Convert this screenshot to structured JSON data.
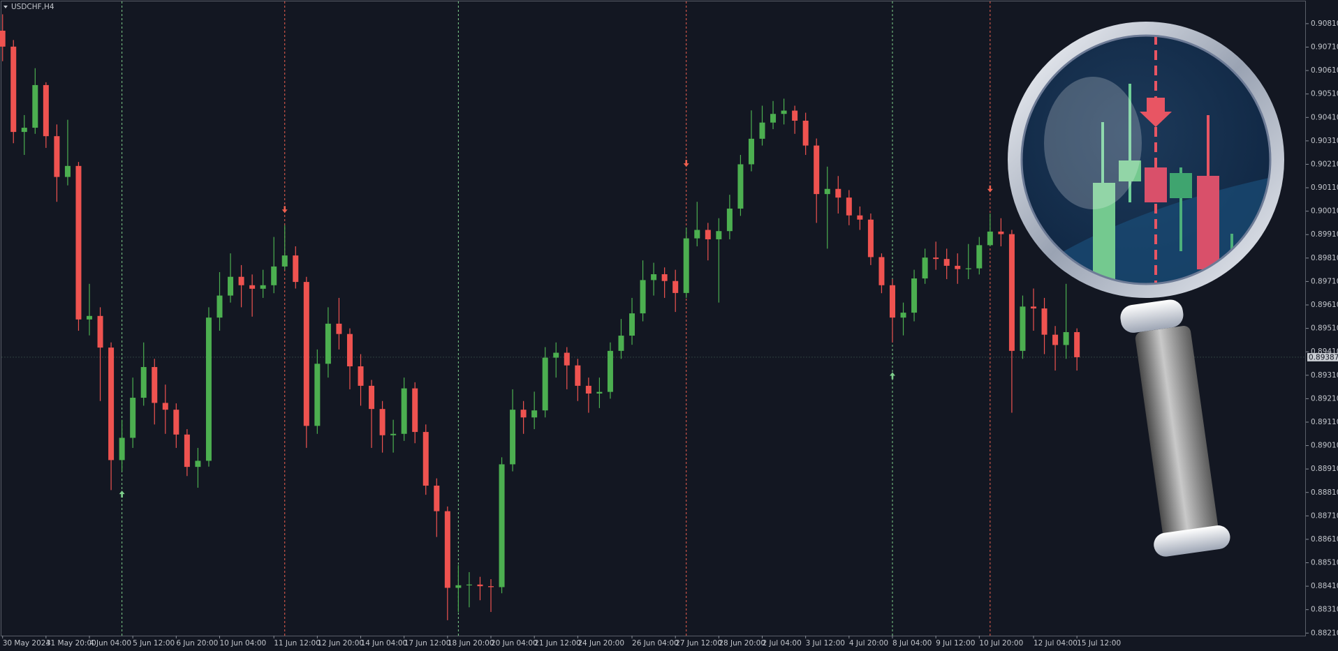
{
  "chart_data": {
    "type": "candlestick",
    "title": "USDCHF,H4",
    "bull_color": "#4caf50",
    "bear_color": "#ef5350",
    "ylim": [
      0.88199,
      0.90905
    ],
    "yticks": [
      {
        "value": 0.9081,
        "label": "0.90810"
      },
      {
        "value": 0.9071,
        "label": "0.90710"
      },
      {
        "value": 0.9061,
        "label": "0.90610"
      },
      {
        "value": 0.9051,
        "label": "0.90510"
      },
      {
        "value": 0.9041,
        "label": "0.90410"
      },
      {
        "value": 0.9031,
        "label": "0.90310"
      },
      {
        "value": 0.9021,
        "label": "0.90210"
      },
      {
        "value": 0.9011,
        "label": "0.90110"
      },
      {
        "value": 0.9001,
        "label": "0.90010"
      },
      {
        "value": 0.8991,
        "label": "0.89910"
      },
      {
        "value": 0.8981,
        "label": "0.89810"
      },
      {
        "value": 0.8971,
        "label": "0.89710"
      },
      {
        "value": 0.8961,
        "label": "0.89610"
      },
      {
        "value": 0.8951,
        "label": "0.89510"
      },
      {
        "value": 0.8941,
        "label": "0.89410"
      },
      {
        "value": 0.8931,
        "label": "0.89310"
      },
      {
        "value": 0.8921,
        "label": "0.89210"
      },
      {
        "value": 0.8911,
        "label": "0.89110"
      },
      {
        "value": 0.8901,
        "label": "0.89010"
      },
      {
        "value": 0.8891,
        "label": "0.88910"
      },
      {
        "value": 0.8881,
        "label": "0.88810"
      },
      {
        "value": 0.8871,
        "label": "0.88710"
      },
      {
        "value": 0.8861,
        "label": "0.88610"
      },
      {
        "value": 0.8851,
        "label": "0.88510"
      },
      {
        "value": 0.8841,
        "label": "0.88410"
      },
      {
        "value": 0.8831,
        "label": "0.88310"
      },
      {
        "value": 0.8821,
        "label": "0.88210"
      }
    ],
    "xticks": [
      {
        "value": 0,
        "label": "30 May 2024"
      },
      {
        "value": 4,
        "label": "31 May 20:00"
      },
      {
        "value": 8,
        "label": "4 Jun 04:00"
      },
      {
        "value": 12,
        "label": "5 Jun 12:00"
      },
      {
        "value": 16,
        "label": "6 Jun 20:00"
      },
      {
        "value": 20,
        "label": "10 Jun 04:00"
      },
      {
        "value": 25,
        "label": "11 Jun 12:00"
      },
      {
        "value": 29,
        "label": "12 Jun 20:00"
      },
      {
        "value": 33,
        "label": "14 Jun 04:00"
      },
      {
        "value": 37,
        "label": "17 Jun 12:00"
      },
      {
        "value": 41,
        "label": "18 Jun 20:00"
      },
      {
        "value": 45,
        "label": "20 Jun 04:00"
      },
      {
        "value": 49,
        "label": "21 Jun 12:00"
      },
      {
        "value": 53,
        "label": "24 Jun 20:00"
      },
      {
        "value": 58,
        "label": "26 Jun 04:00"
      },
      {
        "value": 62,
        "label": "27 Jun 12:00"
      },
      {
        "value": 66,
        "label": "28 Jun 20:00"
      },
      {
        "value": 70,
        "label": "2 Jul 04:00"
      },
      {
        "value": 74,
        "label": "3 Jul 12:00"
      },
      {
        "value": 78,
        "label": "4 Jul 20:00"
      },
      {
        "value": 82,
        "label": "8 Jul 04:00"
      },
      {
        "value": 86,
        "label": "9 Jul 12:00"
      },
      {
        "value": 90,
        "label": "10 Jul 20:00"
      },
      {
        "value": 95,
        "label": "12 Jul 04:00"
      },
      {
        "value": 99,
        "label": "15 Jul 12:00"
      }
    ],
    "open": [
      0.9078,
      0.90712,
      0.90348,
      0.90366,
      0.90548,
      0.9033,
      0.90156,
      0.90203,
      0.89548,
      0.89563,
      0.89428,
      0.88948,
      0.89043,
      0.89214,
      0.89345,
      0.89192,
      0.89163,
      0.89057,
      0.88919,
      0.88945,
      0.89556,
      0.8965,
      0.8973,
      0.89694,
      0.89679,
      0.89694,
      0.89774,
      0.89821,
      0.89708,
      0.89094,
      0.89359,
      0.8953,
      0.89486,
      0.89348,
      0.89265,
      0.89166,
      0.89054,
      0.8906,
      0.89254,
      0.89068,
      0.88839,
      0.8873,
      0.88403,
      0.88414,
      0.88417,
      0.8841,
      0.88406,
      0.8893,
      0.89163,
      0.8913,
      0.8916,
      0.89385,
      0.89406,
      0.89352,
      0.89265,
      0.89232,
      0.89239,
      0.89414,
      0.89479,
      0.89574,
      0.89716,
      0.89741,
      0.89712,
      0.89661,
      0.89894,
      0.8993,
      0.8989,
      0.89925,
      0.90021,
      0.9021,
      0.90319,
      0.90388,
      0.90425,
      0.90439,
      0.90396,
      0.9029,
      0.90083,
      0.90105,
      0.90068,
      0.89992,
      0.89974,
      0.89814,
      0.89694,
      0.89556,
      0.89577,
      0.89723,
      0.89812,
      0.89806,
      0.89777,
      0.89763,
      0.89766,
      0.89865,
      0.89923,
      0.89912,
      0.89414,
      0.89603,
      0.89595,
      0.89483,
      0.89439,
      0.89494
    ],
    "high": [
      0.9085,
      0.9074,
      0.9042,
      0.9062,
      0.9056,
      0.9038,
      0.904,
      0.9022,
      0.897,
      0.896,
      0.8945,
      0.8912,
      0.893,
      0.8945,
      0.8938,
      0.8927,
      0.8919,
      0.8908,
      0.89,
      0.896,
      0.8975,
      0.8983,
      0.8978,
      0.8974,
      0.8976,
      0.899,
      0.8995,
      0.8986,
      0.8973,
      0.8942,
      0.896,
      0.8964,
      0.8951,
      0.894,
      0.8929,
      0.892,
      0.8912,
      0.893,
      0.8928,
      0.891,
      0.8887,
      0.8875,
      0.885,
      0.8847,
      0.8845,
      0.8844,
      0.8896,
      0.8925,
      0.892,
      0.8924,
      0.8943,
      0.8945,
      0.8943,
      0.8938,
      0.893,
      0.893,
      0.8945,
      0.8955,
      0.8964,
      0.898,
      0.8979,
      0.8977,
      0.8976,
      0.8994,
      0.9005,
      0.8996,
      0.8998,
      0.9008,
      0.9025,
      0.9044,
      0.9046,
      0.9048,
      0.9049,
      0.9046,
      0.9043,
      0.9032,
      0.902,
      0.9016,
      0.901,
      0.9003,
      0.9,
      0.8983,
      0.8972,
      0.8962,
      0.8976,
      0.8985,
      0.8988,
      0.8985,
      0.8983,
      0.8987,
      0.899,
      0.9,
      0.8998,
      0.8993,
      0.8965,
      0.8968,
      0.8964,
      0.8952,
      0.897,
      0.8951
    ],
    "low": [
      0.9065,
      0.903,
      0.9025,
      0.9034,
      0.9028,
      0.9005,
      0.9012,
      0.895,
      0.8948,
      0.892,
      0.8882,
      0.889,
      0.89,
      0.8918,
      0.891,
      0.8906,
      0.89,
      0.8888,
      0.8883,
      0.8892,
      0.895,
      0.8962,
      0.896,
      0.8956,
      0.8964,
      0.8966,
      0.8976,
      0.8968,
      0.89,
      0.8906,
      0.893,
      0.8942,
      0.8925,
      0.8918,
      0.89,
      0.8898,
      0.8898,
      0.8903,
      0.8902,
      0.888,
      0.8862,
      0.88265,
      0.883,
      0.8832,
      0.8835,
      0.883,
      0.8838,
      0.889,
      0.8906,
      0.8908,
      0.8913,
      0.893,
      0.8925,
      0.892,
      0.8915,
      0.8917,
      0.8921,
      0.8938,
      0.8944,
      0.8954,
      0.8965,
      0.8964,
      0.8958,
      0.8964,
      0.8986,
      0.898,
      0.8962,
      0.8989,
      0.8999,
      0.9018,
      0.9029,
      0.9036,
      0.9038,
      0.9034,
      0.9025,
      0.8996,
      0.8985,
      0.9,
      0.8995,
      0.8993,
      0.8978,
      0.8966,
      0.8945,
      0.8948,
      0.8954,
      0.897,
      0.8976,
      0.8972,
      0.897,
      0.8972,
      0.8974,
      0.8986,
      0.8986,
      0.8915,
      0.8938,
      0.895,
      0.894,
      0.8933,
      0.8938,
      0.8933
    ],
    "close": [
      0.90712,
      0.90348,
      0.90366,
      0.90548,
      0.9033,
      0.90156,
      0.90203,
      0.89548,
      0.89563,
      0.89428,
      0.88948,
      0.89043,
      0.89214,
      0.89345,
      0.89192,
      0.89163,
      0.89057,
      0.88919,
      0.88945,
      0.89556,
      0.8965,
      0.8973,
      0.89694,
      0.89679,
      0.89694,
      0.89774,
      0.89821,
      0.89708,
      0.89094,
      0.89359,
      0.8953,
      0.89486,
      0.89348,
      0.89265,
      0.89166,
      0.89054,
      0.8906,
      0.89254,
      0.89068,
      0.88839,
      0.8873,
      0.88403,
      0.88414,
      0.88417,
      0.8841,
      0.88406,
      0.8893,
      0.89163,
      0.8913,
      0.8916,
      0.89385,
      0.89406,
      0.89352,
      0.89265,
      0.89232,
      0.89239,
      0.89414,
      0.89479,
      0.89574,
      0.89716,
      0.89741,
      0.89712,
      0.89661,
      0.89894,
      0.8993,
      0.8989,
      0.89925,
      0.90021,
      0.9021,
      0.90319,
      0.90388,
      0.90425,
      0.90439,
      0.90396,
      0.9029,
      0.90083,
      0.90105,
      0.90068,
      0.89992,
      0.89974,
      0.89814,
      0.89694,
      0.89556,
      0.89577,
      0.89723,
      0.89812,
      0.89806,
      0.89777,
      0.89763,
      0.89766,
      0.89865,
      0.89923,
      0.89912,
      0.89414,
      0.89603,
      0.89595,
      0.89483,
      0.89439,
      0.89494,
      0.89387
    ],
    "signals": [
      {
        "index": 11,
        "color": "#7fd08c",
        "arrow_price": 0.88803
      },
      {
        "index": 26,
        "color": "#f0604f",
        "arrow_price": 0.90017
      },
      {
        "index": 42,
        "color": "#7fd08c",
        "arrow_price": null
      },
      {
        "index": 63,
        "color": "#f0604f",
        "arrow_price": 0.90214
      },
      {
        "index": 82,
        "color": "#7fd08c",
        "arrow_price": 0.89308
      },
      {
        "index": 91,
        "color": "#f0604f",
        "arrow_price": 0.90105
      }
    ],
    "last_price": {
      "value": 0.89387,
      "label": "0.89387"
    }
  }
}
